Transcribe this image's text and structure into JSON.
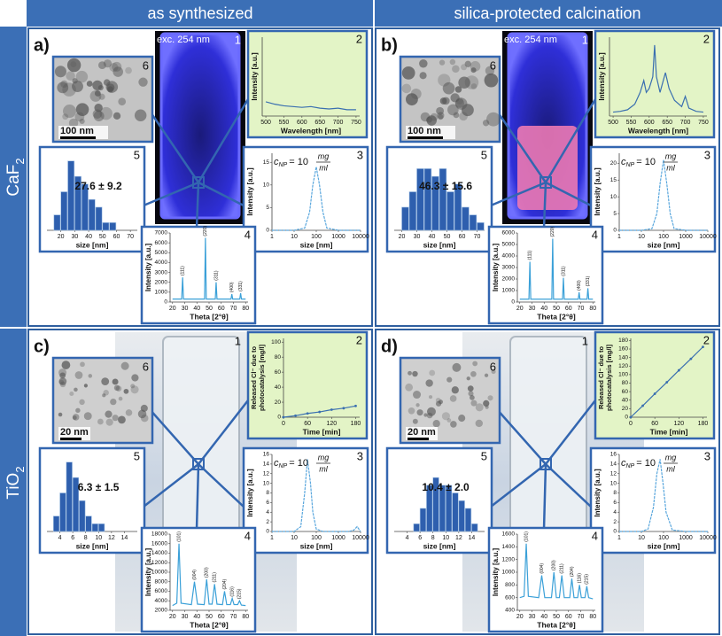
{
  "columns": [
    "as synthesized",
    "silica-protected calcination"
  ],
  "rows": [
    {
      "text": "CaF",
      "sub": "2"
    },
    {
      "text": "TiO",
      "sub": "2"
    }
  ],
  "inset_numbers": [
    "1",
    "2",
    "3",
    "4",
    "5",
    "6"
  ],
  "panels": [
    {
      "letter": "a)",
      "photo_label": "exc. 254 nm",
      "tem_scale": "100 nm",
      "inset2": {
        "type": "line",
        "xlabel": "Wavelength [nm]",
        "ylabel": "Intensity [a.u.]",
        "xlim": [
          490,
          760
        ],
        "ylim": [
          0,
          1
        ],
        "xticks": [
          500,
          550,
          600,
          650,
          700,
          750
        ],
        "color": "#3a6fb0",
        "x": [
          500,
          525,
          550,
          575,
          600,
          625,
          650,
          675,
          700,
          725,
          750
        ],
        "values": [
          0.18,
          0.15,
          0.13,
          0.12,
          0.11,
          0.12,
          0.1,
          0.09,
          0.1,
          0.08,
          0.08
        ]
      },
      "histogram": {
        "type": "hist",
        "xlabel": "size [nm]",
        "note": "27.6 ± 9.2",
        "xlim": [
          10,
          75
        ],
        "ylim": [
          0,
          10
        ],
        "xticks": [
          20,
          30,
          40,
          50,
          60,
          70
        ],
        "color": "#2e5fae",
        "bins": [
          15,
          20,
          25,
          30,
          35,
          40,
          45,
          50,
          55,
          60
        ],
        "values": [
          2,
          5,
          9,
          7,
          6,
          4,
          3,
          1,
          1
        ]
      },
      "dls": {
        "type": "line",
        "log": true,
        "dash": true,
        "xlabel": "size [nm]",
        "ylabel": "Intensity [a.u.]",
        "xlim": [
          1,
          10000
        ],
        "ylim": [
          0,
          17
        ],
        "xticks": [
          1,
          10,
          100,
          1000,
          10000
        ],
        "yticks": [
          0,
          5,
          10,
          15
        ],
        "color": "#5aa7dd",
        "note": {
          "c": "c",
          "sub": "NP",
          "eq": "= 10",
          "num": "mg",
          "den": "ml"
        },
        "x": [
          1,
          10,
          30,
          50,
          70,
          100,
          140,
          200,
          300,
          1000,
          10000
        ],
        "values": [
          0,
          0,
          0.5,
          4,
          10,
          14,
          10,
          4,
          0.5,
          0,
          0
        ]
      },
      "xrd": {
        "type": "xrd",
        "xlabel": "Theta [2°θ]",
        "ylabel": "Intensity [a.u.]",
        "xlim": [
          18,
          82
        ],
        "ylim": [
          0,
          7000
        ],
        "xticks": [
          20,
          30,
          40,
          50,
          60,
          70,
          80
        ],
        "yticks": [
          0,
          1000,
          2000,
          3000,
          4000,
          5000,
          6000,
          7000
        ],
        "color": "#3aa0d8",
        "x": [
          20,
          27.5,
          28.3,
          29,
          46.3,
          47,
          47.7,
          55.1,
          55.8,
          56.5,
          68,
          68.7,
          69.4,
          75.2,
          75.9,
          76.6,
          80
        ],
        "values": [
          300,
          300,
          2500,
          300,
          300,
          6500,
          300,
          300,
          2000,
          300,
          300,
          800,
          300,
          300,
          900,
          300,
          300
        ],
        "peaks": [
          {
            "x": 28.3,
            "label": "(111)"
          },
          {
            "x": 47,
            "label": "(220)"
          },
          {
            "x": 55.8,
            "label": "(311)"
          },
          {
            "x": 68.7,
            "label": "(400)"
          },
          {
            "x": 75.9,
            "label": "(331)"
          }
        ]
      }
    },
    {
      "letter": "b)",
      "photo_label": "exc. 254 nm",
      "tem_scale": "100 nm",
      "inset2": {
        "type": "line",
        "xlabel": "Wavelength [nm]",
        "ylabel": "Intensity [a.u.]",
        "xlim": [
          490,
          760
        ],
        "ylim": [
          0,
          1
        ],
        "xticks": [
          500,
          550,
          600,
          650,
          700,
          750
        ],
        "color": "#3a6fb0",
        "x": [
          500,
          520,
          540,
          560,
          575,
          585,
          592,
          600,
          610,
          615,
          620,
          630,
          645,
          655,
          670,
          690,
          700,
          710,
          730,
          750
        ],
        "values": [
          0.05,
          0.06,
          0.08,
          0.15,
          0.3,
          0.45,
          0.3,
          0.35,
          0.5,
          0.9,
          0.5,
          0.3,
          0.55,
          0.35,
          0.2,
          0.12,
          0.25,
          0.1,
          0.06,
          0.05
        ]
      },
      "histogram": {
        "type": "hist",
        "xlabel": "size [nm]",
        "note": "46.3 ± 15.6",
        "xlim": [
          15,
          75
        ],
        "ylim": [
          0,
          10
        ],
        "xticks": [
          20,
          30,
          40,
          50,
          60,
          70
        ],
        "color": "#2e5fae",
        "bins": [
          20,
          25,
          30,
          35,
          40,
          45,
          50,
          55,
          60,
          65,
          70,
          75
        ],
        "values": [
          3,
          5,
          8,
          8,
          7,
          8,
          5,
          6,
          3,
          2,
          1
        ]
      },
      "dls": {
        "type": "line",
        "log": true,
        "dash": true,
        "xlabel": "size [nm]",
        "ylabel": "Intensity [a.u.]",
        "xlim": [
          1,
          10000
        ],
        "ylim": [
          0,
          23
        ],
        "xticks": [
          1,
          10,
          100,
          1000,
          10000
        ],
        "yticks": [
          0,
          5,
          10,
          15,
          20
        ],
        "color": "#5aa7dd",
        "note": {
          "c": "c",
          "sub": "NP",
          "eq": "= 10",
          "num": "mg",
          "den": "ml"
        },
        "x": [
          1,
          10,
          30,
          50,
          70,
          100,
          140,
          200,
          300,
          1000,
          10000
        ],
        "values": [
          0,
          0,
          0.5,
          5,
          14,
          21,
          14,
          5,
          0.5,
          0,
          0
        ]
      },
      "xrd": {
        "type": "xrd",
        "xlabel": "Theta [2°θ]",
        "ylabel": "Intensity [a.u.]",
        "xlim": [
          18,
          82
        ],
        "ylim": [
          0,
          6000
        ],
        "xticks": [
          20,
          30,
          40,
          50,
          60,
          70,
          80
        ],
        "yticks": [
          0,
          1000,
          2000,
          3000,
          4000,
          5000,
          6000
        ],
        "color": "#3aa0d8",
        "x": [
          20,
          27.5,
          28.3,
          29,
          46.3,
          47,
          47.7,
          55.1,
          55.8,
          56.5,
          68,
          68.7,
          69.4,
          75.2,
          75.9,
          76.6,
          80
        ],
        "values": [
          250,
          250,
          3500,
          250,
          250,
          5500,
          250,
          250,
          2100,
          250,
          250,
          850,
          250,
          250,
          1200,
          250,
          250
        ],
        "peaks": [
          {
            "x": 28.3,
            "label": "(111)"
          },
          {
            "x": 47,
            "label": "(220)"
          },
          {
            "x": 55.8,
            "label": "(311)"
          },
          {
            "x": 68.7,
            "label": "(400)"
          },
          {
            "x": 75.9,
            "label": "(331)"
          }
        ]
      }
    },
    {
      "letter": "c)",
      "tem_scale": "20 nm",
      "inset2": {
        "type": "line",
        "dots": true,
        "xlabel": "Time [min]",
        "ylabel": [
          "Released Cl⁻ due to",
          "photocatalysis [mg/l]"
        ],
        "xlim": [
          0,
          190
        ],
        "ylim": [
          0,
          105
        ],
        "xticks": [
          0,
          60,
          120,
          180
        ],
        "yticks": [
          0,
          20,
          40,
          60,
          80,
          100
        ],
        "color": "#3a6fb0",
        "x": [
          0,
          30,
          60,
          90,
          120,
          150,
          180
        ],
        "values": [
          0,
          2,
          5,
          7,
          10,
          12,
          15
        ]
      },
      "histogram": {
        "type": "hist",
        "xlabel": "size [nm]",
        "note": "6.3 ± 1.5",
        "xlim": [
          2,
          16
        ],
        "ylim": [
          0,
          10
        ],
        "xticks": [
          4,
          6,
          8,
          10,
          12,
          14
        ],
        "color": "#2e5fae",
        "bins": [
          3,
          4,
          5,
          6,
          7,
          8,
          9,
          10,
          11
        ],
        "values": [
          2,
          5,
          9,
          7,
          4,
          2,
          1,
          1
        ]
      },
      "dls": {
        "type": "line",
        "log": true,
        "dash": true,
        "xlabel": "size [nm]",
        "ylabel": "Intensity [a.u.]",
        "xlim": [
          1,
          10000
        ],
        "ylim": [
          0,
          16
        ],
        "xticks": [
          1,
          10,
          100,
          1000,
          10000
        ],
        "yticks": [
          0,
          2,
          4,
          6,
          8,
          10,
          12,
          14,
          16
        ],
        "color": "#5aa7dd",
        "note": {
          "c": "c",
          "sub": "NP",
          "eq": "= 10",
          "num": "mg",
          "den": "ml"
        },
        "x": [
          1,
          10,
          20,
          30,
          40,
          55,
          70,
          100,
          200,
          3000,
          5000,
          7000,
          9000,
          10000
        ],
        "values": [
          0,
          0,
          1,
          8,
          15,
          10,
          4,
          0.5,
          0,
          0,
          0.3,
          1,
          0.3,
          0
        ]
      },
      "xrd": {
        "type": "xrd",
        "xlabel": "Theta [2°θ]",
        "ylabel": "Intensity [a.u.]",
        "xlim": [
          18,
          82
        ],
        "ylim": [
          2000,
          18000
        ],
        "xticks": [
          20,
          30,
          40,
          50,
          60,
          70,
          80
        ],
        "yticks": [
          2000,
          4000,
          6000,
          8000,
          10000,
          12000,
          14000,
          16000,
          18000
        ],
        "color": "#3aa0d8",
        "x": [
          20,
          23.5,
          25.3,
          27,
          35.5,
          38,
          40.5,
          46,
          48,
          50,
          52.5,
          54.5,
          56.5,
          61,
          62.7,
          64.5,
          67.5,
          69,
          70.5,
          73.5,
          75,
          76.5,
          80
        ],
        "values": [
          3000,
          3500,
          16000,
          3500,
          3200,
          8000,
          3300,
          3200,
          8500,
          3300,
          3300,
          7500,
          3300,
          3200,
          6000,
          3200,
          3200,
          4500,
          3200,
          3200,
          4000,
          3100,
          3000
        ],
        "peaks": [
          {
            "x": 25.3,
            "label": "(101)"
          },
          {
            "x": 38,
            "label": "(004)"
          },
          {
            "x": 48,
            "label": "(200)"
          },
          {
            "x": 54.5,
            "label": "(211)"
          },
          {
            "x": 62.7,
            "label": "(204)"
          },
          {
            "x": 69,
            "label": "(116)"
          },
          {
            "x": 75,
            "label": "(215)"
          }
        ]
      }
    },
    {
      "letter": "d)",
      "tem_scale": "20 nm",
      "inset2": {
        "type": "line",
        "dots": true,
        "xlabel": "Time [min]",
        "ylabel": [
          "Released Cl⁻ due to",
          "photocatalysis [mg/l]"
        ],
        "xlim": [
          0,
          190
        ],
        "ylim": [
          0,
          185
        ],
        "xticks": [
          0,
          60,
          120,
          180
        ],
        "yticks": [
          0,
          20,
          40,
          60,
          80,
          100,
          120,
          140,
          160,
          180
        ],
        "color": "#3a6fb0",
        "x": [
          0,
          30,
          60,
          90,
          120,
          150,
          180
        ],
        "values": [
          0,
          27,
          55,
          82,
          110,
          137,
          165
        ]
      },
      "histogram": {
        "type": "hist",
        "xlabel": "size [nm]",
        "note": "10.4 ± 2.0",
        "xlim": [
          2,
          16
        ],
        "ylim": [
          0,
          10
        ],
        "xticks": [
          4,
          6,
          8,
          10,
          12,
          14
        ],
        "color": "#2e5fae",
        "bins": [
          5,
          6,
          7,
          8,
          9,
          10,
          11,
          12,
          13,
          14,
          15
        ],
        "values": [
          1,
          3,
          6,
          7,
          6,
          6,
          5,
          4,
          3,
          1
        ]
      },
      "dls": {
        "type": "line",
        "log": true,
        "dash": true,
        "xlabel": "size [nm]",
        "ylabel": "Intensity [a.u.]",
        "xlim": [
          1,
          10000
        ],
        "ylim": [
          0,
          16
        ],
        "xticks": [
          1,
          10,
          100,
          1000,
          10000
        ],
        "yticks": [
          0,
          2,
          4,
          6,
          8,
          10,
          12,
          14,
          16
        ],
        "color": "#5aa7dd",
        "note": {
          "c": "c",
          "sub": "NP",
          "eq": "= 10",
          "num": "mg",
          "den": "ml"
        },
        "x": [
          1,
          10,
          20,
          35,
          50,
          70,
          95,
          130,
          250,
          1000,
          10000
        ],
        "values": [
          0,
          0,
          0.5,
          5,
          12,
          15,
          10,
          4,
          0.3,
          0,
          0
        ]
      },
      "xrd": {
        "type": "xrd",
        "xlabel": "Theta [2°θ]",
        "ylabel": "Intensity [a.u.]",
        "xlim": [
          18,
          82
        ],
        "ylim": [
          400,
          1600
        ],
        "xticks": [
          20,
          30,
          40,
          50,
          60,
          70,
          80
        ],
        "yticks": [
          400,
          600,
          800,
          1000,
          1200,
          1400,
          1600
        ],
        "color": "#3aa0d8",
        "x": [
          20,
          23.5,
          25.3,
          27,
          35.5,
          38,
          40.5,
          46,
          48,
          50,
          52.5,
          54.5,
          56.5,
          61,
          62.7,
          64.5,
          67.5,
          69,
          70.5,
          73.5,
          75,
          76.5,
          80
        ],
        "values": [
          600,
          620,
          1450,
          620,
          600,
          950,
          600,
          600,
          1000,
          600,
          600,
          950,
          600,
          600,
          900,
          600,
          600,
          800,
          600,
          600,
          780,
          600,
          580
        ],
        "peaks": [
          {
            "x": 25.3,
            "label": "(101)"
          },
          {
            "x": 38,
            "label": "(004)"
          },
          {
            "x": 48,
            "label": "(200)"
          },
          {
            "x": 54.5,
            "label": "(211)"
          },
          {
            "x": 62.7,
            "label": "(204)"
          },
          {
            "x": 69,
            "label": "(116)"
          },
          {
            "x": 75,
            "label": "(215)"
          }
        ]
      }
    }
  ]
}
